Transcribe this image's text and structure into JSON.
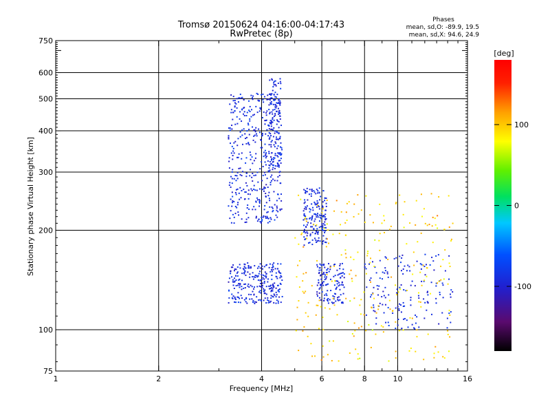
{
  "chart_data": {
    "type": "scatter",
    "title": "Tromsø 20150624 04:16:00-04:17:43",
    "subtitle": "RwPretec (8p)",
    "xlabel": "Frequency [MHz]",
    "ylabel": "Stationary phase Virtual Height [km]",
    "xscale": "log",
    "yscale": "log",
    "xlim": [
      1,
      16
    ],
    "ylim": [
      75,
      750
    ],
    "xticks": [
      1,
      2,
      4,
      6,
      8,
      10,
      16
    ],
    "yticks": [
      75,
      100,
      200,
      300,
      400,
      500,
      600,
      750
    ],
    "grid": true,
    "phase_info": {
      "heading": "Phases",
      "o_line": "mean, sd,O: -89.9, 19.5",
      "x_line": "mean, sd,X:  94.6, 24.9"
    },
    "colorbar": {
      "label": "[deg]",
      "range": [
        -180,
        180
      ],
      "ticks": [
        {
          "value": 100,
          "label": "100"
        },
        {
          "value": 0,
          "label": "0"
        },
        {
          "value": -100,
          "label": "-100"
        }
      ]
    },
    "clusters": [
      {
        "id": "o-low-arch",
        "f_range": [
          3.2,
          4.6
        ],
        "h_range": [
          120,
          160
        ],
        "phase_mean": -90,
        "phase_sd": 20,
        "count": 260
      },
      {
        "id": "o-trace-high",
        "f_range": [
          3.2,
          4.6
        ],
        "h_range": [
          210,
          520
        ],
        "phase_mean": -90,
        "phase_sd": 20,
        "count": 430
      },
      {
        "id": "o-spike",
        "f_range": [
          4.2,
          4.55
        ],
        "h_range": [
          300,
          580
        ],
        "phase_mean": -90,
        "phase_sd": 20,
        "count": 120
      },
      {
        "id": "o-mid",
        "f_range": [
          5.3,
          6.2
        ],
        "h_range": [
          180,
          270
        ],
        "phase_mean": -90,
        "phase_sd": 20,
        "count": 170
      },
      {
        "id": "o-low-mid",
        "f_range": [
          5.8,
          7.0
        ],
        "h_range": [
          120,
          160
        ],
        "phase_mean": -90,
        "phase_sd": 20,
        "count": 130
      },
      {
        "id": "o-scatter-right",
        "f_range": [
          8.0,
          14.5
        ],
        "h_range": [
          100,
          170
        ],
        "phase_mean": -90,
        "phase_sd": 20,
        "count": 160
      },
      {
        "id": "x-scatter",
        "f_range": [
          5.0,
          14.5
        ],
        "h_range": [
          80,
          260
        ],
        "phase_mean": 95,
        "phase_sd": 25,
        "count": 260
      }
    ]
  }
}
